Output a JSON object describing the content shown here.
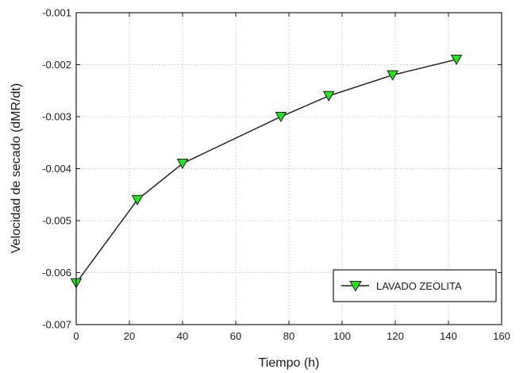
{
  "chart_data": {
    "type": "line",
    "title": "",
    "xlabel": "Tiempo (h)",
    "ylabel": "Velocidad de secado (dMR/dt)",
    "xlim": [
      0,
      160
    ],
    "ylim": [
      -0.007,
      -0.001
    ],
    "x_ticks": [
      0,
      20,
      40,
      60,
      80,
      100,
      120,
      140,
      160
    ],
    "x_tick_labels": [
      "0",
      "20",
      "40",
      "60",
      "80",
      "100",
      "120",
      "140",
      "160"
    ],
    "y_ticks": [
      -0.007,
      -0.006,
      -0.005,
      -0.004,
      -0.003,
      -0.002,
      -0.001
    ],
    "y_tick_labels": [
      "-0.007",
      "-0.006",
      "-0.005",
      "-0.004",
      "-0.003",
      "-0.002",
      "-0.001"
    ],
    "grid": true,
    "legend_position": "bottom-right",
    "series": [
      {
        "name": "LAVADO ZEOLITA",
        "marker": "down-triangle",
        "line_color": "#1a1a1a",
        "marker_color": "#22e51e",
        "x": [
          0,
          23,
          40,
          77,
          95,
          119,
          143
        ],
        "y": [
          -0.0062,
          -0.0046,
          -0.0039,
          -0.003,
          -0.0026,
          -0.0022,
          -0.0019
        ]
      }
    ]
  }
}
